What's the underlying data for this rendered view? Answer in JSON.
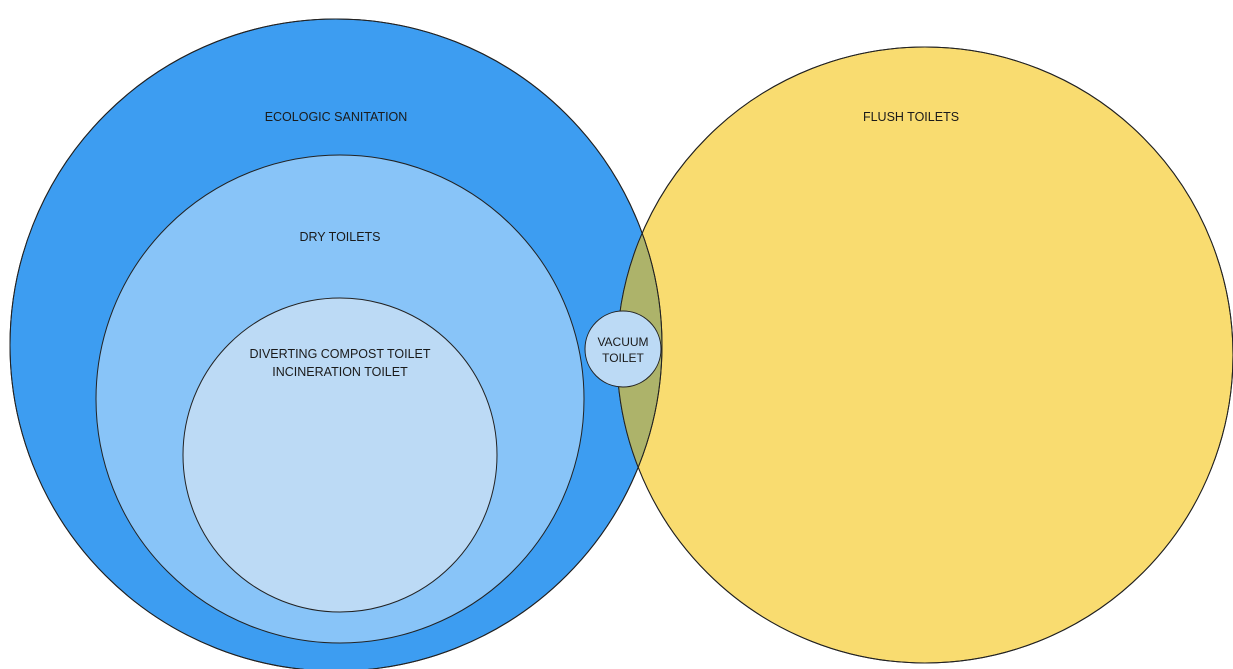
{
  "diagram": {
    "type": "venn-nested",
    "sets": {
      "ecologic_sanitation": {
        "label": "ECOLOGIC SANITATION",
        "color": "#3d9df1"
      },
      "dry_toilets": {
        "label": "DRY TOILETS",
        "color": "#88c4f8"
      },
      "inner_group": {
        "lines": [
          "DIVERTING COMPOST TOILET",
          "INCINERATION TOILET"
        ],
        "color": "#bcdaf5"
      },
      "flush_toilets": {
        "label": "FLUSH TOILETS",
        "color": "#f9dc70"
      },
      "overlap": {
        "color": "#adb36a"
      },
      "vacuum_toilet": {
        "lines": [
          "VACUUM",
          "TOILET"
        ],
        "color": "#bcdaf5"
      }
    },
    "stroke_color": "#222222"
  }
}
